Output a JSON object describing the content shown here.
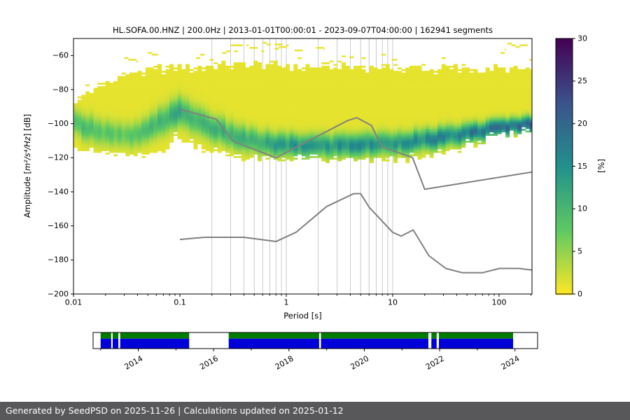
{
  "chart_data": {
    "type": "heatmap",
    "title": "HL.SOFA.00.HNZ | 200.0Hz | 2013-01-01T00:00:01 - 2023-09-07T04:00:00 | 162941 segments",
    "xlabel": "Period [s]",
    "ylabel": "Amplitude [m²/s⁴/Hz] [dB]",
    "ylabel_parts": {
      "prefix": "Amplitude [",
      "math": "m²/s⁴/Hz",
      "suffix": "] [dB]"
    },
    "xscale": "log",
    "xlim": [
      0.01,
      204
    ],
    "ylim": [
      -200,
      -50
    ],
    "x_ticks": [
      {
        "v": 0.01,
        "label": "0.01"
      },
      {
        "v": 0.1,
        "label": "0.1"
      },
      {
        "v": 1,
        "label": "1"
      },
      {
        "v": 10,
        "label": "10"
      },
      {
        "v": 100,
        "label": "100"
      }
    ],
    "y_ticks": [
      {
        "v": -200,
        "label": "−200"
      },
      {
        "v": -180,
        "label": "−180"
      },
      {
        "v": -160,
        "label": "−160"
      },
      {
        "v": -140,
        "label": "−140"
      },
      {
        "v": -120,
        "label": "−120"
      },
      {
        "v": -100,
        "label": "−100"
      },
      {
        "v": -80,
        "label": "−80"
      },
      {
        "v": -60,
        "label": "−60"
      }
    ],
    "grid_periods": [
      0.2,
      0.3,
      0.4,
      0.5,
      0.6,
      0.7,
      0.8,
      0.9,
      1,
      2,
      3,
      4,
      5,
      6,
      7,
      8,
      9,
      10
    ],
    "colorbar": {
      "label": "[%]",
      "min": 0,
      "max": 30,
      "ticks": [
        0,
        5,
        10,
        15,
        20,
        25,
        30
      ],
      "colormap": "viridis_r",
      "stops": [
        [
          "#fde725",
          0
        ],
        [
          "#5ec962",
          7.5
        ],
        [
          "#21918c",
          15
        ],
        [
          "#3b528b",
          22.5
        ],
        [
          "#440154",
          30
        ]
      ]
    },
    "histogram_band": [
      {
        "p": 0.01,
        "top": -87,
        "bot": -112,
        "c": -99,
        "s": 4.5,
        "pmax": 9
      },
      {
        "p": 0.013,
        "top": -82,
        "bot": -114,
        "c": -101.5,
        "s": 5,
        "pmax": 8
      },
      {
        "p": 0.018,
        "top": -77,
        "bot": -116.5,
        "c": -104,
        "s": 5,
        "pmax": 7
      },
      {
        "p": 0.026,
        "top": -72.5,
        "bot": -118.5,
        "c": -106.5,
        "s": 4.8,
        "pmax": 6.5
      },
      {
        "p": 0.035,
        "top": -70,
        "bot": -119.5,
        "c": -107,
        "s": 4.8,
        "pmax": 6.5
      },
      {
        "p": 0.05,
        "top": -68,
        "bot": -118.5,
        "c": -103.5,
        "s": 5,
        "pmax": 8
      },
      {
        "p": 0.07,
        "top": -67,
        "bot": -114,
        "c": -97.5,
        "s": 5.5,
        "pmax": 10
      },
      {
        "p": 0.095,
        "top": -66,
        "bot": -107.5,
        "c": -92.5,
        "s": 5.5,
        "pmax": 11
      },
      {
        "p": 0.14,
        "top": -66.5,
        "bot": -112,
        "c": -97,
        "s": 5.5,
        "pmax": 10
      },
      {
        "p": 0.22,
        "top": -66,
        "bot": -116.5,
        "c": -103,
        "s": 5,
        "pmax": 10
      },
      {
        "p": 0.32,
        "top": -64.5,
        "bot": -118.5,
        "c": -107,
        "s": 5,
        "pmax": 10
      },
      {
        "p": 0.5,
        "top": -65.5,
        "bot": -120,
        "c": -110,
        "s": 4.6,
        "pmax": 11
      },
      {
        "p": 0.8,
        "top": -64.5,
        "bot": -121,
        "c": -112,
        "s": 4.4,
        "pmax": 12
      },
      {
        "p": 1.3,
        "top": -66,
        "bot": -121,
        "c": -112.5,
        "s": 4.3,
        "pmax": 13
      },
      {
        "p": 2.5,
        "top": -66.5,
        "bot": -121,
        "c": -112.5,
        "s": 4.3,
        "pmax": 13
      },
      {
        "p": 5,
        "top": -66,
        "bot": -121,
        "c": -112,
        "s": 4.3,
        "pmax": 14
      },
      {
        "p": 10,
        "top": -67,
        "bot": -121,
        "c": -111,
        "s": 4.2,
        "pmax": 14
      },
      {
        "p": 20,
        "top": -67,
        "bot": -119.5,
        "c": -109.5,
        "s": 4,
        "pmax": 14
      },
      {
        "p": 35,
        "top": -67,
        "bot": -115.5,
        "c": -107,
        "s": 3.8,
        "pmax": 15
      },
      {
        "p": 60,
        "top": -67.5,
        "bot": -111,
        "c": -104.5,
        "s": 3.5,
        "pmax": 17
      },
      {
        "p": 100,
        "top": -67.5,
        "bot": -107,
        "c": -102,
        "s": 3.2,
        "pmax": 18
      },
      {
        "p": 150,
        "top": -68,
        "bot": -104.5,
        "c": -100.5,
        "s": 3,
        "pmax": 19
      },
      {
        "p": 204,
        "top": -68,
        "bot": -103,
        "c": -100,
        "s": 3,
        "pmax": 19
      }
    ],
    "speckles": [
      {
        "p0": 0.03,
        "p1": 0.04,
        "db": -62
      },
      {
        "p0": 0.05,
        "p1": 0.062,
        "db": -59
      },
      {
        "p0": 0.13,
        "p1": 0.17,
        "db": -60
      },
      {
        "p0": 0.25,
        "p1": 0.35,
        "db": -57
      },
      {
        "p0": 0.3,
        "p1": 0.44,
        "db": -53.5
      },
      {
        "p0": 0.45,
        "p1": 0.62,
        "db": -56
      },
      {
        "p0": 0.6,
        "p1": 0.95,
        "db": -52
      },
      {
        "p0": 0.78,
        "p1": 1.05,
        "db": -54.5
      },
      {
        "p0": 1.1,
        "p1": 1.5,
        "db": -57.5
      },
      {
        "p0": 1.6,
        "p1": 2.3,
        "db": -55
      },
      {
        "p0": 2.1,
        "p1": 2.7,
        "db": -58.5
      },
      {
        "p0": 3.6,
        "p1": 4.3,
        "db": -60.5
      },
      {
        "p0": 9,
        "p1": 11,
        "db": -62
      },
      {
        "p0": 95,
        "p1": 115,
        "db": -57
      },
      {
        "p0": 120,
        "p1": 200,
        "db": -53.5
      }
    ],
    "noise_models": {
      "color": "#808080",
      "high": [
        [
          0.1,
          -91.5
        ],
        [
          0.22,
          -97.4
        ],
        [
          0.32,
          -110.5
        ],
        [
          0.8,
          -120.0
        ],
        [
          3.8,
          -98.1
        ],
        [
          4.6,
          -96.5
        ],
        [
          6.3,
          -101.0
        ],
        [
          7.9,
          -113.5
        ],
        [
          15.4,
          -120.0
        ],
        [
          20.0,
          -138.5
        ],
        [
          354.8,
          -126.0
        ]
      ],
      "low": [
        [
          0.1,
          -168.0
        ],
        [
          0.17,
          -166.7
        ],
        [
          0.4,
          -166.7
        ],
        [
          0.8,
          -169.2
        ],
        [
          1.24,
          -163.7
        ],
        [
          2.4,
          -148.6
        ],
        [
          4.3,
          -141.1
        ],
        [
          5.0,
          -141.1
        ],
        [
          6.0,
          -149.0
        ],
        [
          10.0,
          -163.8
        ],
        [
          12.0,
          -166.0
        ],
        [
          15.6,
          -162.4
        ],
        [
          21.9,
          -177.5
        ],
        [
          31.6,
          -185.0
        ],
        [
          45.0,
          -187.5
        ],
        [
          70.0,
          -187.5
        ],
        [
          101.0,
          -185.0
        ],
        [
          154.0,
          -185.0
        ],
        [
          328.0,
          -187.5
        ]
      ]
    },
    "timeline": {
      "range": [
        2012.8,
        2024.6
      ],
      "ticks": [
        2014,
        2016,
        2018,
        2020,
        2022,
        2024
      ],
      "segments": [
        [
          2013.0,
          2013.28
        ],
        [
          2013.32,
          2013.47
        ],
        [
          2013.52,
          2015.35
        ],
        [
          2016.4,
          2018.8
        ],
        [
          2018.85,
          2021.7
        ],
        [
          2021.78,
          2021.92
        ],
        [
          2021.98,
          2023.95
        ]
      ],
      "colors": {
        "top": "#007c00",
        "bottom": "#0000d8"
      },
      "top_fraction": 0.38
    },
    "footer": {
      "text": "Generated by SeedPSD on 2025-11-26 | Calculations updated on 2025-01-12",
      "bg": "#58585a"
    }
  }
}
